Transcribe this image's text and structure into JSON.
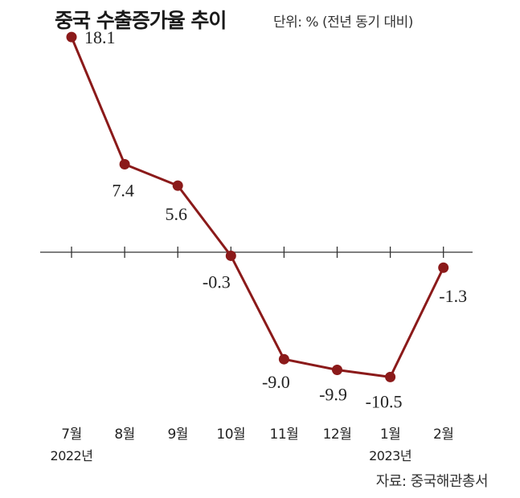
{
  "header": {
    "title": "중국 수출증가율 추이",
    "unit": "단위: % (전년 동기 대비)"
  },
  "footer": {
    "source": "자료: 중국해관총서"
  },
  "colors": {
    "line": "#8b1a1a",
    "axis": "#333333"
  },
  "chart_data": {
    "type": "line",
    "title": "중국 수출증가율 추이",
    "categories": [
      "7월",
      "8월",
      "9월",
      "10월",
      "11월",
      "12월",
      "1월",
      "2월"
    ],
    "year_labels": [
      {
        "index": 0,
        "label": "2022년"
      },
      {
        "index": 6,
        "label": "2023년"
      }
    ],
    "series": [
      {
        "values": [
          18.1,
          7.4,
          5.6,
          -0.3,
          -9.0,
          -9.9,
          -10.5,
          -1.3
        ]
      }
    ],
    "value_labels": [
      "18.1",
      "7.4",
      "5.6",
      "-0.3",
      "-9.0",
      "-9.9",
      "-10.5",
      "-1.3"
    ],
    "ylim": [
      -12,
      20
    ],
    "grid": false
  }
}
